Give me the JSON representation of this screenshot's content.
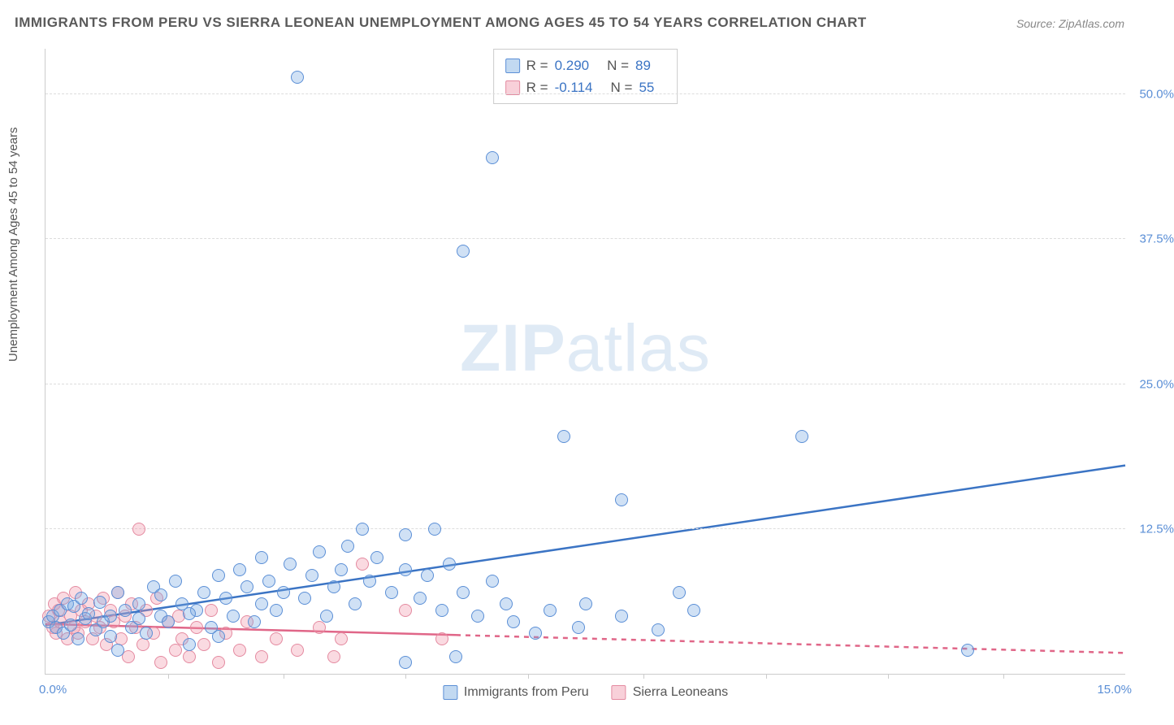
{
  "title": "IMMIGRANTS FROM PERU VS SIERRA LEONEAN UNEMPLOYMENT AMONG AGES 45 TO 54 YEARS CORRELATION CHART",
  "source": "Source: ZipAtlas.com",
  "watermark_a": "ZIP",
  "watermark_b": "atlas",
  "ylabel": "Unemployment Among Ages 45 to 54 years",
  "chart": {
    "type": "scatter",
    "xlim": [
      0,
      15
    ],
    "ylim": [
      0,
      54
    ],
    "xtick_major": [
      0,
      15
    ],
    "xtick_minor": [
      1.7,
      3.3,
      5.0,
      6.7,
      8.3,
      10.0,
      11.7,
      13.3
    ],
    "xtick_labels": {
      "0": "0.0%",
      "15": "15.0%"
    },
    "yticks": [
      12.5,
      25.0,
      37.5,
      50.0
    ],
    "ytick_labels": [
      "12.5%",
      "25.0%",
      "37.5%",
      "50.0%"
    ],
    "grid_color": "#dddddd",
    "background": "#ffffff",
    "series_blue": {
      "name": "Immigrants from Peru",
      "color_fill": "rgba(120,170,225,0.35)",
      "color_stroke": "#5b8fd6",
      "r": "0.290",
      "n": "89",
      "trend": {
        "x1": 0,
        "y1": 4.2,
        "x2": 15,
        "y2": 18.0,
        "dash_after_x": null
      },
      "points": [
        [
          0.05,
          4.5
        ],
        [
          0.1,
          5.0
        ],
        [
          0.15,
          4.0
        ],
        [
          0.2,
          5.5
        ],
        [
          0.25,
          3.5
        ],
        [
          0.3,
          6.0
        ],
        [
          0.35,
          4.2
        ],
        [
          0.4,
          5.8
        ],
        [
          0.45,
          3.0
        ],
        [
          0.5,
          6.5
        ],
        [
          0.55,
          4.8
        ],
        [
          0.6,
          5.2
        ],
        [
          0.7,
          3.8
        ],
        [
          0.75,
          6.2
        ],
        [
          0.8,
          4.5
        ],
        [
          0.9,
          5.0
        ],
        [
          1.0,
          2.0
        ],
        [
          1.0,
          7.0
        ],
        [
          1.1,
          5.5
        ],
        [
          1.2,
          4.0
        ],
        [
          1.3,
          6.0
        ],
        [
          1.4,
          3.5
        ],
        [
          1.5,
          7.5
        ],
        [
          1.6,
          5.0
        ],
        [
          1.7,
          4.5
        ],
        [
          1.8,
          8.0
        ],
        [
          1.9,
          6.0
        ],
        [
          2.0,
          2.5
        ],
        [
          2.1,
          5.5
        ],
        [
          2.2,
          7.0
        ],
        [
          2.3,
          4.0
        ],
        [
          2.4,
          8.5
        ],
        [
          2.5,
          6.5
        ],
        [
          2.6,
          5.0
        ],
        [
          2.7,
          9.0
        ],
        [
          2.8,
          7.5
        ],
        [
          2.9,
          4.5
        ],
        [
          3.0,
          6.0
        ],
        [
          3.0,
          10.0
        ],
        [
          3.1,
          8.0
        ],
        [
          3.2,
          5.5
        ],
        [
          3.3,
          7.0
        ],
        [
          3.4,
          9.5
        ],
        [
          3.5,
          51.5
        ],
        [
          3.6,
          6.5
        ],
        [
          3.7,
          8.5
        ],
        [
          3.8,
          10.5
        ],
        [
          3.9,
          5.0
        ],
        [
          4.0,
          7.5
        ],
        [
          4.1,
          9.0
        ],
        [
          4.2,
          11.0
        ],
        [
          4.3,
          6.0
        ],
        [
          4.4,
          12.5
        ],
        [
          4.5,
          8.0
        ],
        [
          4.6,
          10.0
        ],
        [
          4.8,
          7.0
        ],
        [
          5.0,
          1.0
        ],
        [
          5.0,
          12.0
        ],
        [
          5.0,
          9.0
        ],
        [
          5.2,
          6.5
        ],
        [
          5.3,
          8.5
        ],
        [
          5.4,
          12.5
        ],
        [
          5.5,
          5.5
        ],
        [
          5.6,
          9.5
        ],
        [
          5.7,
          1.5
        ],
        [
          5.8,
          7.0
        ],
        [
          5.8,
          36.5
        ],
        [
          6.0,
          5.0
        ],
        [
          6.2,
          8.0
        ],
        [
          6.2,
          44.5
        ],
        [
          6.4,
          6.0
        ],
        [
          6.5,
          4.5
        ],
        [
          6.8,
          3.5
        ],
        [
          7.0,
          5.5
        ],
        [
          7.2,
          20.5
        ],
        [
          7.4,
          4.0
        ],
        [
          7.5,
          6.0
        ],
        [
          8.0,
          15.0
        ],
        [
          8.0,
          5.0
        ],
        [
          8.5,
          3.8
        ],
        [
          8.8,
          7.0
        ],
        [
          9.0,
          5.5
        ],
        [
          10.5,
          20.5
        ],
        [
          12.8,
          2.0
        ],
        [
          0.9,
          3.2
        ],
        [
          1.3,
          4.8
        ],
        [
          1.6,
          6.8
        ],
        [
          2.0,
          5.2
        ],
        [
          2.4,
          3.2
        ]
      ]
    },
    "series_pink": {
      "name": "Sierra Leoneans",
      "color_fill": "rgba(240,150,170,0.35)",
      "color_stroke": "#e48aa0",
      "r": "-0.114",
      "n": "55",
      "trend": {
        "x1": 0,
        "y1": 4.3,
        "x2": 15,
        "y2": 1.8,
        "dash_after_x": 5.7
      },
      "points": [
        [
          0.05,
          5.0
        ],
        [
          0.1,
          4.0
        ],
        [
          0.12,
          6.0
        ],
        [
          0.15,
          3.5
        ],
        [
          0.18,
          5.5
        ],
        [
          0.2,
          4.5
        ],
        [
          0.25,
          6.5
        ],
        [
          0.3,
          3.0
        ],
        [
          0.35,
          5.0
        ],
        [
          0.4,
          4.0
        ],
        [
          0.42,
          7.0
        ],
        [
          0.45,
          3.5
        ],
        [
          0.5,
          5.5
        ],
        [
          0.55,
          4.5
        ],
        [
          0.6,
          6.0
        ],
        [
          0.65,
          3.0
        ],
        [
          0.7,
          5.0
        ],
        [
          0.75,
          4.0
        ],
        [
          0.8,
          6.5
        ],
        [
          0.85,
          2.5
        ],
        [
          0.9,
          5.5
        ],
        [
          0.95,
          4.5
        ],
        [
          1.0,
          7.0
        ],
        [
          1.05,
          3.0
        ],
        [
          1.1,
          5.0
        ],
        [
          1.15,
          1.5
        ],
        [
          1.2,
          6.0
        ],
        [
          1.25,
          4.0
        ],
        [
          1.3,
          12.5
        ],
        [
          1.35,
          2.5
        ],
        [
          1.4,
          5.5
        ],
        [
          1.5,
          3.5
        ],
        [
          1.55,
          6.5
        ],
        [
          1.6,
          1.0
        ],
        [
          1.7,
          4.5
        ],
        [
          1.8,
          2.0
        ],
        [
          1.85,
          5.0
        ],
        [
          1.9,
          3.0
        ],
        [
          2.0,
          1.5
        ],
        [
          2.1,
          4.0
        ],
        [
          2.2,
          2.5
        ],
        [
          2.3,
          5.5
        ],
        [
          2.4,
          1.0
        ],
        [
          2.5,
          3.5
        ],
        [
          2.7,
          2.0
        ],
        [
          2.8,
          4.5
        ],
        [
          3.0,
          1.5
        ],
        [
          3.2,
          3.0
        ],
        [
          3.5,
          2.0
        ],
        [
          3.8,
          4.0
        ],
        [
          4.0,
          1.5
        ],
        [
          4.1,
          3.0
        ],
        [
          4.4,
          9.5
        ],
        [
          5.0,
          5.5
        ],
        [
          5.5,
          3.0
        ]
      ]
    }
  },
  "legend_top": {
    "r_label": "R =",
    "n_label": "N ="
  },
  "legend_bottom": {
    "blue": "Immigrants from Peru",
    "pink": "Sierra Leoneans"
  }
}
